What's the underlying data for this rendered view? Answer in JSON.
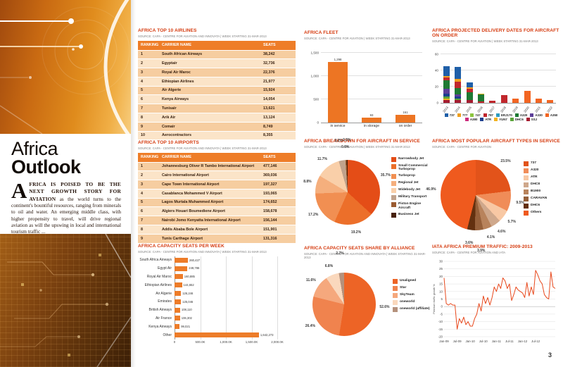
{
  "page": {
    "number": "3"
  },
  "sidebar": {
    "title_line1": "Africa",
    "title_line2": "Outlook",
    "dropcap": "A",
    "intro_bold": "FRICA IS POISED TO BE THE NEXT GROWTH STORY FOR AVIATION",
    "intro_rest": "as the world turns to the continent's bountiful resources, ranging from minerals to oil and water. An emerging middle class, with higher propensity to travel, will drive regional aviation as will the upswing in local and international tourism traffic ..."
  },
  "chart_data": [
    {
      "type": "table",
      "title": "AFRICA TOP 10 AIRLINES",
      "source": "SOURCE: CAPA - CENTRE FOR AVIATION AND INNOVATA | WEEK STARTING 31-MAR-2013",
      "headers": [
        "RANKING",
        "CARRIER NAME",
        "SEATS"
      ],
      "rows": [
        [
          "1",
          "South African Airways",
          "38,242"
        ],
        [
          "2",
          "Egyptair",
          "32,736"
        ],
        [
          "3",
          "Royal Air Maroc",
          "22,376"
        ],
        [
          "4",
          "Ethiopian Airlines",
          "21,977"
        ],
        [
          "5",
          "Air Algerie",
          "15,924"
        ],
        [
          "6",
          "Kenya Airways",
          "14,054"
        ],
        [
          "7",
          "Tunisair",
          "13,621"
        ],
        [
          "8",
          "Arik Air",
          "13,124"
        ],
        [
          "9",
          "Comair",
          "8,749"
        ],
        [
          "10",
          "Aerocontractors",
          "8,355"
        ]
      ]
    },
    {
      "type": "table",
      "title": "AFRICA TOP 10 AIRPORTS",
      "source": "SOURCE: CAPA - CENTRE FOR AVIATION AND INNOVATA | WEEK STARTING 31-MAR-2013",
      "headers": [
        "RANKING",
        "CARRIER NAME",
        "SEATS"
      ],
      "rows": [
        [
          "1",
          "Johannesburg Oliver R Tambo International Airport",
          "477,146"
        ],
        [
          "2",
          "Cairo International Airport",
          "369,036"
        ],
        [
          "3",
          "Cape Town International Airport",
          "197,327"
        ],
        [
          "4",
          "Casablanca Mohammed V Airport",
          "193,065"
        ],
        [
          "5",
          "Lagos Murtala Muhammed Airport",
          "174,652"
        ],
        [
          "6",
          "Algiers Houari Boumediene Airport",
          "158,678"
        ],
        [
          "7",
          "Nairobi Jomo Kenyatta International Airport",
          "156,144"
        ],
        [
          "8",
          "Addis Ababa Bole Airport",
          "151,901"
        ],
        [
          "9",
          "Tunis Carthage Airport",
          "131,316"
        ]
      ]
    },
    {
      "type": "bar",
      "orientation": "horizontal",
      "title": "AFRICA CAPACITY SEATS PER WEEK",
      "source": "SOURCE: CAPA - CENTRE FOR AVIATION AND INNOVATA | WEEK STARTING 31-MAR-2013",
      "categories": [
        "South Africa Airways",
        "Egypt Air",
        "Royal Air Maroc",
        "Ethiopian Airlines",
        "Air Algerie",
        "Emirates",
        "British Airways",
        "Air France",
        "Kenya Airways",
        "Other"
      ],
      "values": [
        260427,
        249786,
        160885,
        144652,
        126246,
        125046,
        108110,
        106302,
        99021,
        1642273
      ],
      "value_labels": [
        "260,427",
        "249,786",
        "160,885",
        "144,652",
        "126,246",
        "125,046",
        "108,110",
        "106,302",
        "99,021",
        "1,642,273"
      ],
      "xlim": [
        0,
        2000000
      ],
      "xticks": [
        "0",
        "500.0K",
        "1,000.0K",
        "1,500.0K",
        "2,000.0K"
      ],
      "bar_color": "#ed7c29"
    },
    {
      "type": "bar",
      "orientation": "vertical",
      "title": "AFRICA FLEET",
      "source": "SOURCE: CAPA - CENTRE FOR AVIATION | WEEK STARTING 31-MAR-2013",
      "categories": [
        "in service",
        "in storage",
        "on order"
      ],
      "values": [
        1298,
        93,
        161
      ],
      "value_labels": [
        "1,298",
        "93",
        "161"
      ],
      "ylim": [
        0,
        1500
      ],
      "yticks": [
        {
          "v": 0,
          "label": "0"
        },
        {
          "v": 500,
          "label": "500"
        },
        {
          "v": 1000,
          "label": "1,000"
        },
        {
          "v": 1500,
          "label": "1,500"
        }
      ],
      "bar_color": "#ed7523"
    },
    {
      "type": "pie",
      "title": "AFRICA BREAKDOWN FOR AIRCRAFT IN SERVICE",
      "source": "SOURCE: CAPA - CENTRE FOR AVIATION | WEEK STARTING 31-MAR-2013",
      "slices": [
        {
          "label": "Narrowbody Jet",
          "pct": 35.7,
          "pct_label": "35.7%",
          "color": "#e44d17"
        },
        {
          "label": "Small Commercial Turboprop",
          "pct": 19.2,
          "pct_label": "19.2%",
          "color": "#ec6f2a"
        },
        {
          "label": "Turboprop",
          "pct": 17.2,
          "pct_label": "17.2%",
          "color": "#f18f52"
        },
        {
          "label": "Regional Jet",
          "pct": 8.8,
          "pct_label": "8.8%",
          "color": "#f5af7d"
        },
        {
          "label": "Widebody Jet",
          "pct": 11.7,
          "pct_label": "11.7%",
          "color": "#f9cfa9"
        },
        {
          "label": "Military Transport",
          "pct": 3.2,
          "pct_label": "3.2%",
          "color": "#c0a28c"
        },
        {
          "label": "Piston Engine Aircraft",
          "pct": 0.6,
          "pct_label": "0.6%",
          "color": "#9b5c31"
        },
        {
          "label": "Business Jet",
          "pct": 0.5,
          "pct_label": "0.5%",
          "color": "#46200c"
        }
      ]
    },
    {
      "type": "pie",
      "title": "AFRICA CAPACITY SEATS SHARE BY ALLIANCE",
      "source": "SOURCE: CAPA - CENTRE FOR AVIATION AND INNOVATA | WEEK STARTING 31-MAR-2013",
      "slices": [
        {
          "label": "Unaligned",
          "pct": 52.6,
          "pct_label": "52.6%",
          "color": "#ed6426"
        },
        {
          "label": "Star",
          "pct": 26.4,
          "pct_label": "26.4%",
          "color": "#f0834e"
        },
        {
          "label": "SkyTeam",
          "pct": 11.6,
          "pct_label": "11.6%",
          "color": "#f5a87d"
        },
        {
          "label": "oneworld",
          "pct": 6.8,
          "pct_label": "6.8%",
          "color": "#fad8bd"
        },
        {
          "label": "oneworld (affiliate)",
          "pct": 2.7,
          "pct_label": "2.7%",
          "color": "#b5917c"
        }
      ]
    },
    {
      "type": "bar",
      "orientation": "vertical",
      "stacked": true,
      "title": "AFRICA PROJECTED DELIVERY DATES FOR AIRCRAFT ON ORDER",
      "source": "SOURCE: CAPA - CENTRE FOR AVIATION | WEEK STARTING 31-MAR-2013",
      "categories": [
        "2013",
        "2014",
        "2015",
        "2016",
        "2017",
        "2018",
        "2019",
        "2020",
        "2021",
        "2022"
      ],
      "ylim": [
        0,
        60
      ],
      "yticks": [
        {
          "v": 0,
          "label": "0"
        },
        {
          "v": 20,
          "label": "20"
        },
        {
          "v": 40,
          "label": "40"
        },
        {
          "v": 60,
          "label": "60"
        }
      ],
      "legend": [
        {
          "name": "737",
          "color": "#1f5fa8"
        },
        {
          "name": "777",
          "color": "#f0a01e"
        },
        {
          "name": "747",
          "color": "#8cc63f"
        },
        {
          "name": "787",
          "color": "#c1272d"
        },
        {
          "name": "ERJ170",
          "color": "#2e9bbf"
        },
        {
          "name": "A320",
          "color": "#1e7a34"
        },
        {
          "name": "A330",
          "color": "#5c3f99"
        },
        {
          "name": "A350",
          "color": "#f26522"
        },
        {
          "name": "A380",
          "color": "#cc2b7c"
        },
        {
          "name": "ATR",
          "color": "#1b3f8f"
        },
        {
          "name": "YUN7",
          "color": "#f2b21e"
        },
        {
          "name": "DHC6",
          "color": "#5aa539"
        },
        {
          "name": "SSJ",
          "color": "#a61c30"
        }
      ],
      "stacks": [
        {
          "year": "2013",
          "segments": [
            [
              "SSJ",
              3
            ],
            [
              "YUN7",
              2
            ],
            [
              "DHC6",
              2
            ],
            [
              "ATR",
              4
            ],
            [
              "A330",
              6
            ],
            [
              "A320",
              10
            ],
            [
              "787",
              4
            ],
            [
              "777",
              2
            ],
            [
              "737",
              12
            ]
          ]
        },
        {
          "year": "2014",
          "segments": [
            [
              "SSJ",
              3
            ],
            [
              "DHC6",
              2
            ],
            [
              "ATR",
              2
            ],
            [
              "A330",
              3
            ],
            [
              "A320",
              8
            ],
            [
              "787",
              8
            ],
            [
              "777",
              3
            ],
            [
              "737",
              15
            ]
          ]
        },
        {
          "year": "2015",
          "segments": [
            [
              "SSJ",
              3
            ],
            [
              "A320",
              10
            ],
            [
              "787",
              4
            ],
            [
              "777",
              2
            ],
            [
              "737",
              6
            ]
          ]
        },
        {
          "year": "2016",
          "segments": [
            [
              "787",
              1
            ],
            [
              "A320",
              9
            ],
            [
              "YUN7",
              1
            ]
          ]
        },
        {
          "year": "2017",
          "segments": [
            [
              "787",
              2
            ]
          ]
        },
        {
          "year": "2018",
          "segments": [
            [
              "787",
              9
            ]
          ]
        },
        {
          "year": "2019",
          "segments": [
            [
              "A350",
              5
            ]
          ]
        },
        {
          "year": "2020",
          "segments": [
            [
              "A350",
              14
            ]
          ]
        },
        {
          "year": "2021",
          "segments": [
            [
              "A350",
              5
            ]
          ]
        },
        {
          "year": "2022",
          "segments": [
            [
              "A350",
              3
            ]
          ]
        }
      ]
    },
    {
      "type": "pie",
      "title": "AFRICA MOST POPULAR AIRCRAFT TYPES IN SERVICE",
      "source": "SOURCE: CAPA - CENTRE FOR AVIATION",
      "slices": [
        {
          "label": "737",
          "pct": 23.5,
          "pct_label": "23.5%",
          "color": "#e2531a"
        },
        {
          "label": "A320",
          "pct": 9.5,
          "pct_label": "9.5%",
          "color": "#f08c58"
        },
        {
          "label": "ATR",
          "pct": 5.7,
          "pct_label": "5.7%",
          "color": "#f8c8a4"
        },
        {
          "label": "DHC8",
          "pct": 4.6,
          "pct_label": "4.6%",
          "color": "#cfa88c"
        },
        {
          "label": "B1900",
          "pct": 4.1,
          "pct_label": "4.1%",
          "color": "#b8835c"
        },
        {
          "label": "CARAVAN",
          "pct": 3.9,
          "pct_label": "3.9%",
          "color": "#96603a"
        },
        {
          "label": "DHC6",
          "pct": 3.6,
          "pct_label": "3.6%",
          "color": "#63300f"
        },
        {
          "label": "Others",
          "pct": 46.9,
          "pct_label": "46.9%",
          "color": "#ef5a1e"
        }
      ]
    },
    {
      "type": "line",
      "title": "IATA AFRICA PREMIUM TRAFFIC: 2009-2013",
      "source": "SOURCE: CAPA - CENTRE FOR AVIATION AND IATA",
      "ylabel": "Premium traffic growth %",
      "ylim": [
        -20,
        30
      ],
      "yticks": [
        30,
        25,
        20,
        15,
        10,
        5,
        0,
        -5,
        -10,
        -15,
        -20
      ],
      "xticks": [
        "Jan-09",
        "Jul-09",
        "Jan-10",
        "Jul-10",
        "Jan-11",
        "Jul-11",
        "Jan-12",
        "Jul-12"
      ],
      "xtick_every": 6,
      "values": [
        19,
        2,
        1,
        2,
        1,
        1,
        -15,
        -8,
        -11,
        -7,
        -12,
        -10,
        -13,
        -13,
        -8,
        -5,
        2,
        -3,
        7,
        2,
        6,
        1,
        6,
        13,
        10,
        15,
        12,
        19,
        17,
        12,
        15,
        4,
        8,
        13,
        11,
        10,
        9,
        6,
        16,
        7,
        13,
        8,
        24,
        21,
        17,
        15,
        8,
        6,
        5,
        23,
        13,
        12
      ],
      "color": "#e8491d"
    }
  ]
}
